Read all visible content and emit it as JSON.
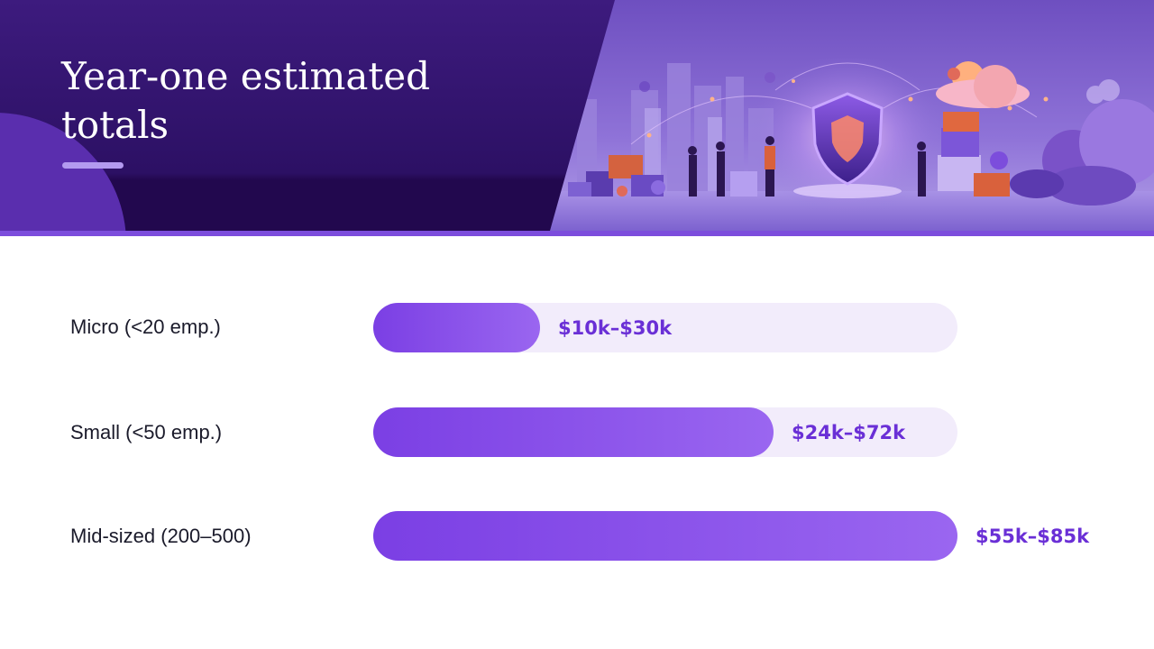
{
  "header": {
    "title": "Year-one estimated totals",
    "accent_color": "#7c4ddc"
  },
  "illustration": {
    "icon": "shield-icon"
  },
  "chart_data": {
    "type": "bar",
    "orientation": "horizontal",
    "categories": [
      "Micro (<20 emp.)",
      "Small (<50 emp.)",
      "Mid-sized (200–500)"
    ],
    "ranges": [
      {
        "low": 10,
        "high": 30
      },
      {
        "low": 24,
        "high": 72
      },
      {
        "low": 55,
        "high": 85
      }
    ],
    "value_labels": [
      "$10k–$30k",
      "$24k–$72k",
      "$55k–$85k"
    ],
    "fill_fractions": [
      0.285,
      0.685,
      1.0
    ],
    "bar_color": "#7b3fe4",
    "track_color": "#f2ecfb",
    "label_color": "#6a2fd6",
    "grid": false,
    "legend": "none"
  }
}
